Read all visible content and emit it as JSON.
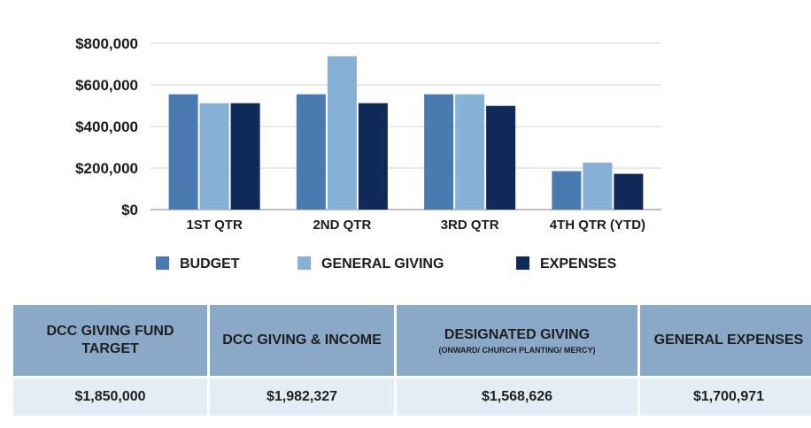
{
  "chart_data": {
    "type": "bar",
    "categories": [
      "1ST QTR",
      "2ND QTR",
      "3RD QTR",
      "4TH QTR (YTD)"
    ],
    "series": [
      {
        "name": "BUDGET",
        "color": "#4a7aaf",
        "values": [
          555000,
          555000,
          555000,
          185000
        ]
      },
      {
        "name": "GENERAL GIVING",
        "color": "#87b0d6",
        "values": [
          512000,
          738000,
          555000,
          226000
        ]
      },
      {
        "name": "EXPENSES",
        "color": "#0f2a59",
        "values": [
          512000,
          512000,
          499000,
          172000
        ]
      }
    ],
    "yticks": [
      "$0",
      "$200,000",
      "$400,000",
      "$600,000",
      "$800,000"
    ],
    "ylim": [
      0,
      800000
    ],
    "grid": true,
    "legend": "bottom"
  },
  "summary": {
    "headers": [
      {
        "title": "DCC GIVING FUND TARGET",
        "sub": ""
      },
      {
        "title": "DCC GIVING & INCOME",
        "sub": ""
      },
      {
        "title": "DESIGNATED GIVING",
        "sub": "(ONWARD/ CHURCH PLANTING/ MERCY)"
      },
      {
        "title": "GENERAL EXPENSES",
        "sub": ""
      }
    ],
    "values": [
      "$1,850,000",
      "$1,982,327",
      "$1,568,626",
      "$1,700,971"
    ]
  }
}
